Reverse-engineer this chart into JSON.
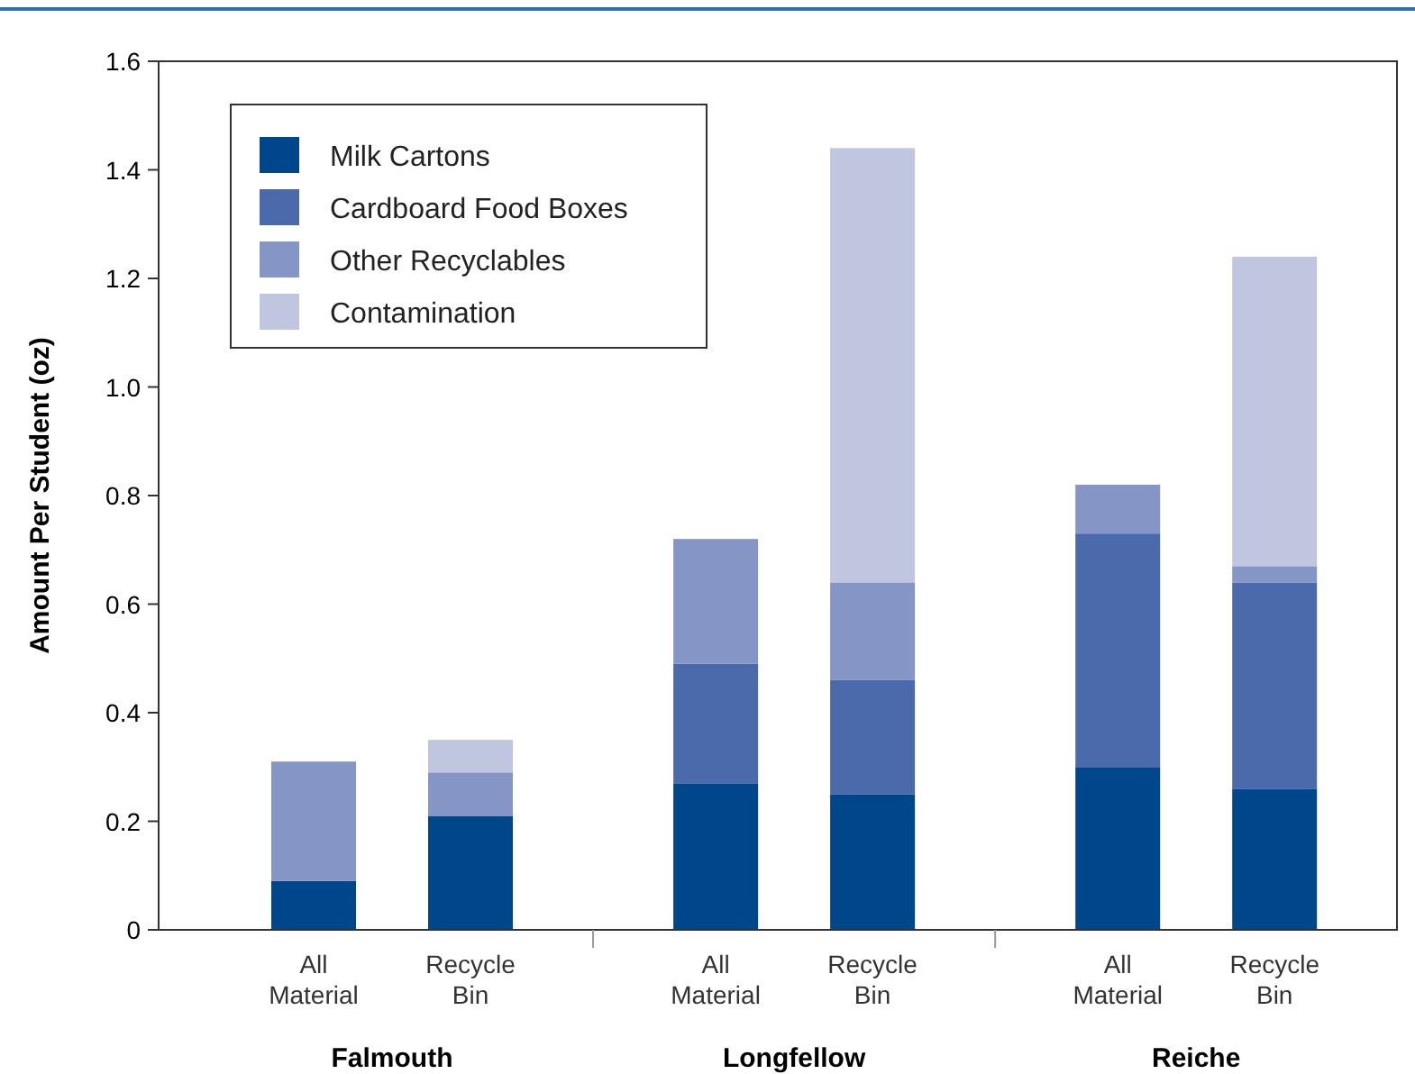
{
  "chart_data": {
    "type": "bar",
    "stacked": true,
    "ylabel": "Amount Per Student  (oz)",
    "categories": [
      "All Material",
      "Recycle Bin",
      "All Material",
      "Recycle Bin",
      "All Material",
      "Recycle Bin"
    ],
    "annotations": [
      "Falmouth",
      "Longfellow",
      "Reiche"
    ],
    "series": [
      {
        "name": "Milk Cartons",
        "color": "#00468b",
        "values": [
          0.09,
          0.21,
          0.27,
          0.25,
          0.3,
          0.26
        ]
      },
      {
        "name": "Cardboard Food Boxes",
        "color": "#4a6aab",
        "values": [
          0,
          0,
          0.22,
          0.21,
          0.43,
          0.38
        ]
      },
      {
        "name": "Other Recyclables",
        "color": "#8595c5",
        "values": [
          0.22,
          0.08,
          0.23,
          0.18,
          0.09,
          0.03
        ]
      },
      {
        "name": "Contamination",
        "color": "#c0c6e0",
        "values": [
          0,
          0.06,
          0,
          0.8,
          0,
          0.57
        ]
      }
    ],
    "ylim": [
      0,
      1.6
    ],
    "yticks": [
      0,
      0.2,
      0.4,
      0.6,
      0.8,
      {
        "value": 1,
        "label": "1.0"
      },
      1.2,
      1.4,
      1.6
    ],
    "legend": "top left",
    "grid": false
  }
}
